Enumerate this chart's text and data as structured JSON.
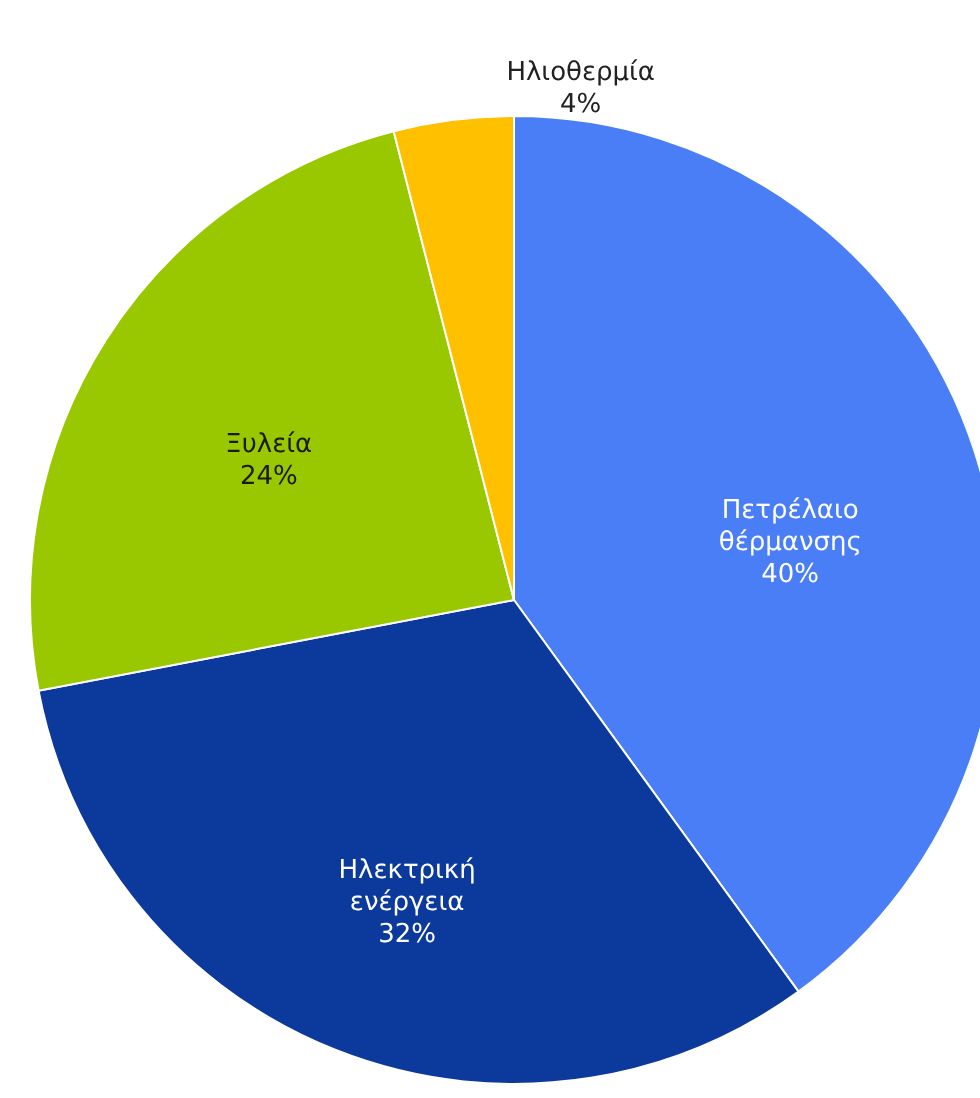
{
  "chart_data": {
    "type": "pie",
    "categories": [
      "Πετρέλαιο θέρμανσης",
      "Ηλεκτρική ενέργεια",
      "Ξυλεία",
      "Ηλιοθερμία"
    ],
    "values": [
      40,
      32,
      24,
      4
    ],
    "colors": [
      "#4a7ef6",
      "#0b3a9c",
      "#99c800",
      "#ffc000"
    ],
    "value_labels": [
      "40%",
      "32%",
      "24%",
      "4%"
    ]
  }
}
